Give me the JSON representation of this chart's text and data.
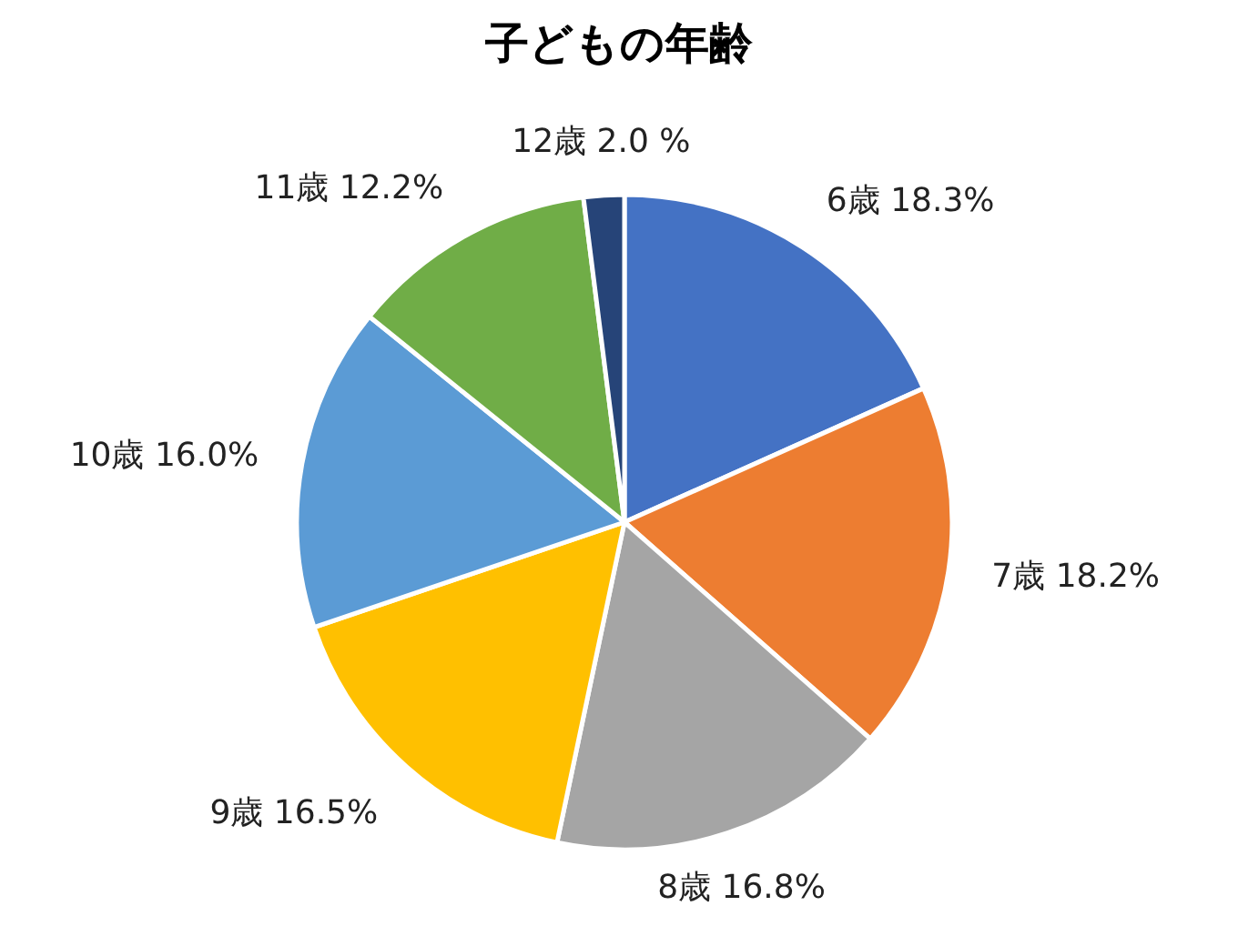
{
  "chart_data": {
    "type": "pie",
    "title": "子どもの年齢",
    "categories": [
      "6歳",
      "7歳",
      "8歳",
      "9歳",
      "10歳",
      "11歳",
      "12歳"
    ],
    "values": [
      18.3,
      18.2,
      16.8,
      16.5,
      16.0,
      12.2,
      2.0
    ],
    "value_labels": [
      "18.3%",
      "18.2%",
      "16.8%",
      "16.5%",
      "16.0%",
      "12.2%",
      "2.0 %"
    ],
    "colors": [
      "#4472c4",
      "#ed7d31",
      "#a5a5a5",
      "#ffc000",
      "#5b9bd5",
      "#70ad47",
      "#264478"
    ],
    "legend": false
  }
}
